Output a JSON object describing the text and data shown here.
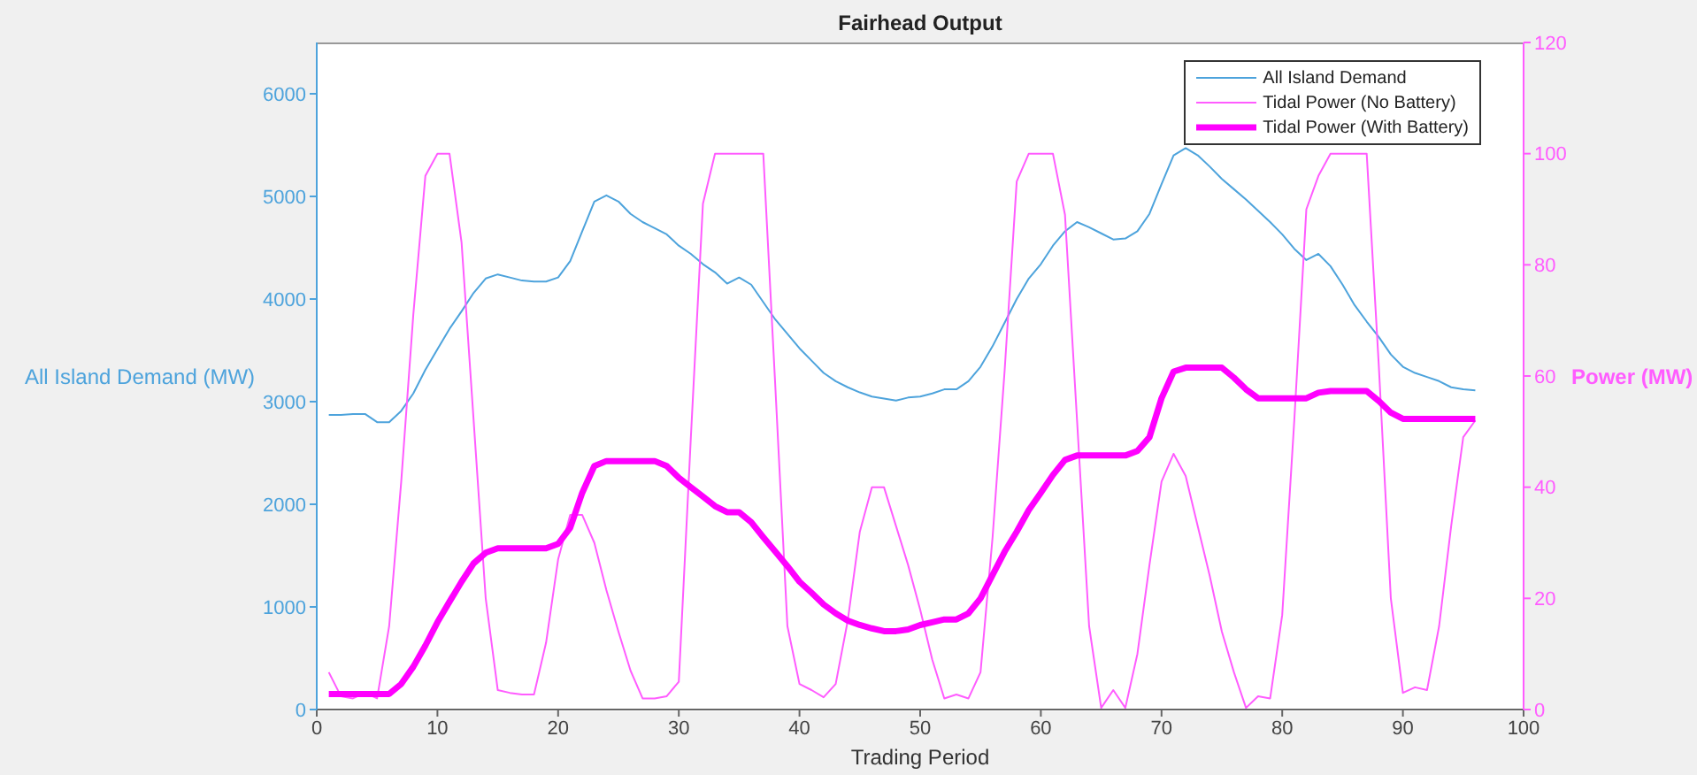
{
  "chart_data": {
    "type": "line",
    "title": "Fairhead Output",
    "xlabel": "Trading Period",
    "ylabel": "All Island Demand (MW)",
    "y2label": "Power (MW)",
    "x": [
      1,
      2,
      3,
      4,
      5,
      6,
      7,
      8,
      9,
      10,
      11,
      12,
      13,
      14,
      15,
      16,
      17,
      18,
      19,
      20,
      21,
      22,
      23,
      24,
      25,
      26,
      27,
      28,
      29,
      30,
      31,
      32,
      33,
      34,
      35,
      36,
      37,
      38,
      39,
      40,
      41,
      42,
      43,
      44,
      45,
      46,
      47,
      48,
      49,
      50,
      51,
      52,
      53,
      54,
      55,
      56,
      57,
      58,
      59,
      60,
      61,
      62,
      63,
      64,
      65,
      66,
      67,
      68,
      69,
      70,
      71,
      72,
      73,
      74,
      75,
      76,
      77,
      78,
      79,
      80,
      81,
      82,
      83,
      84,
      85,
      86,
      87,
      88,
      89,
      90,
      91,
      92,
      93,
      94,
      95,
      96
    ],
    "series": [
      {
        "name": "All Island Demand",
        "color": "#4da3dc",
        "values": [
          2870,
          2870,
          2880,
          2880,
          2800,
          2800,
          2910,
          3080,
          3310,
          3510,
          3710,
          3880,
          4060,
          4200,
          4240,
          4210,
          4180,
          4170,
          4170,
          4210,
          4370,
          4660,
          4950,
          5010,
          4950,
          4830,
          4750,
          4690,
          4630,
          4520,
          4440,
          4340,
          4260,
          4150,
          4210,
          4140,
          3970,
          3800,
          3660,
          3520,
          3400,
          3280,
          3200,
          3140,
          3090,
          3050,
          3030,
          3010,
          3040,
          3050,
          3080,
          3120,
          3120,
          3200,
          3340,
          3540,
          3770,
          4000,
          4200,
          4340,
          4520,
          4660,
          4750,
          4700,
          4640,
          4580,
          4590,
          4660,
          4830,
          5120,
          5400,
          5470,
          5400,
          5290,
          5170,
          5070,
          4970,
          4860,
          4750,
          4630,
          4490,
          4380,
          4440,
          4320,
          4140,
          3940,
          3780,
          3630,
          3460,
          3340,
          3280,
          3240,
          3200,
          3140,
          3120,
          3110
        ]
      },
      {
        "name": "Tidal Power (No Battery)",
        "color": "#ff5cff",
        "axis": "y2",
        "values": [
          6.7,
          2.4,
          2,
          3,
          2,
          15,
          41,
          71,
          96,
          100,
          100,
          84,
          52,
          20,
          3.5,
          3,
          2.7,
          2.7,
          12,
          27,
          35,
          35,
          30,
          21.5,
          14,
          7,
          2,
          2,
          2.4,
          5,
          49,
          91,
          100,
          100,
          100,
          100,
          100,
          58,
          15,
          4.6,
          3.5,
          2.2,
          4.6,
          16,
          32,
          40,
          40,
          33,
          26,
          18,
          9,
          2,
          2.7,
          2,
          6.7,
          31,
          61,
          95,
          100,
          100,
          100,
          89,
          52,
          15,
          0.3,
          3.5,
          0.3,
          10,
          26,
          41,
          46,
          42,
          33,
          24,
          14,
          6.7,
          0.3,
          2.4,
          2,
          17,
          52,
          90,
          96,
          100,
          100,
          100,
          100,
          62,
          20,
          3,
          4,
          3.5,
          15,
          33,
          49,
          52
        ]
      },
      {
        "name": "Tidal Power (With Battery)",
        "color": "#ff00ff",
        "axis": "y2",
        "values": [
          2.8,
          2.8,
          2.8,
          2.8,
          2.8,
          2.8,
          4.6,
          7.7,
          11.5,
          15.7,
          19.4,
          23,
          26.3,
          28.2,
          29,
          29,
          29,
          29,
          29,
          29.8,
          32.7,
          39,
          43.8,
          44.7,
          44.7,
          44.7,
          44.7,
          44.7,
          43.8,
          41.7,
          40,
          38.3,
          36.6,
          35.5,
          35.5,
          33.7,
          31,
          28.4,
          25.8,
          23,
          21,
          18.9,
          17.3,
          16,
          15.2,
          14.6,
          14.1,
          14.1,
          14.4,
          15.2,
          15.7,
          16.2,
          16.2,
          17.3,
          20,
          24.2,
          28.4,
          32,
          35.9,
          39,
          42.2,
          44.9,
          45.7,
          45.7,
          45.7,
          45.7,
          45.7,
          46.5,
          49,
          56,
          60.8,
          61.5,
          61.5,
          61.5,
          61.5,
          59.7,
          57.6,
          56,
          56,
          56,
          56,
          56,
          57,
          57.3,
          57.3,
          57.3,
          57.3,
          55.5,
          53.4,
          52.3,
          52.3,
          52.3,
          52.3,
          52.3,
          52.3,
          52.3
        ]
      }
    ],
    "xlim": [
      0,
      100
    ],
    "xticks": [
      0,
      10,
      20,
      30,
      40,
      50,
      60,
      70,
      80,
      90,
      100
    ],
    "ylim": [
      0,
      6500
    ],
    "yticks": [
      0,
      1000,
      2000,
      3000,
      4000,
      5000,
      6000
    ],
    "y2lim": [
      0,
      120
    ],
    "y2ticks": [
      0,
      20,
      40,
      60,
      80,
      100,
      120
    ],
    "legend": "top right",
    "marker": "none",
    "line_style": "solid"
  }
}
